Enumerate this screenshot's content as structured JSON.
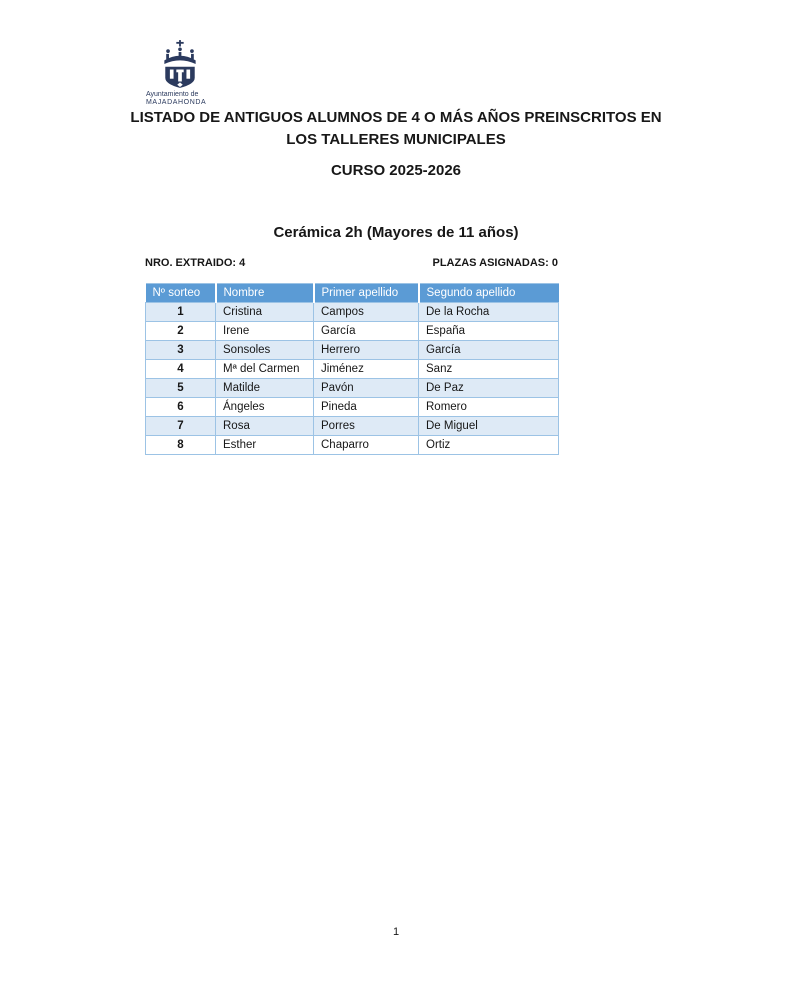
{
  "colors": {
    "table_header_bg": "#5b9bd5",
    "row_band": "#deeaf6",
    "table_border": "#9cc3e5",
    "logo_navy": "#2b3a5e"
  },
  "logo": {
    "org_line1": "Ayuntamiento de",
    "org_line2": "MAJADAHONDA"
  },
  "header": {
    "title_line1": "LISTADO DE ANTIGUOS ALUMNOS DE 4 O MÁS AÑOS PREINSCRITOS EN",
    "title_line2": "LOS TALLERES MUNICIPALES",
    "course": "CURSO 2025-2026"
  },
  "section": {
    "title": "Cerámica 2h (Mayores de 11 años)",
    "nro_extraido_label": "NRO. EXTRAIDO:",
    "nro_extraido_value": "4",
    "plazas_label": "PLAZAS ASIGNADAS:",
    "plazas_value": "0"
  },
  "table": {
    "headers": [
      "Nº sorteo",
      "Nombre",
      "Primer apellido",
      "Segundo apellido"
    ],
    "rows": [
      [
        "1",
        "Cristina",
        "Campos",
        "De la Rocha"
      ],
      [
        "2",
        "Irene",
        "García",
        "España"
      ],
      [
        "3",
        "Sonsoles",
        "Herrero",
        "García"
      ],
      [
        "4",
        "Mª del Carmen",
        "Jiménez",
        "Sanz"
      ],
      [
        "5",
        "Matilde",
        "Pavón",
        "De Paz"
      ],
      [
        "6",
        "Ángeles",
        "Pineda",
        "Romero"
      ],
      [
        "7",
        "Rosa",
        "Porres",
        "De Miguel"
      ],
      [
        "8",
        "Esther",
        "Chaparro",
        "Ortiz"
      ]
    ]
  },
  "footer": {
    "page_number": "1"
  }
}
